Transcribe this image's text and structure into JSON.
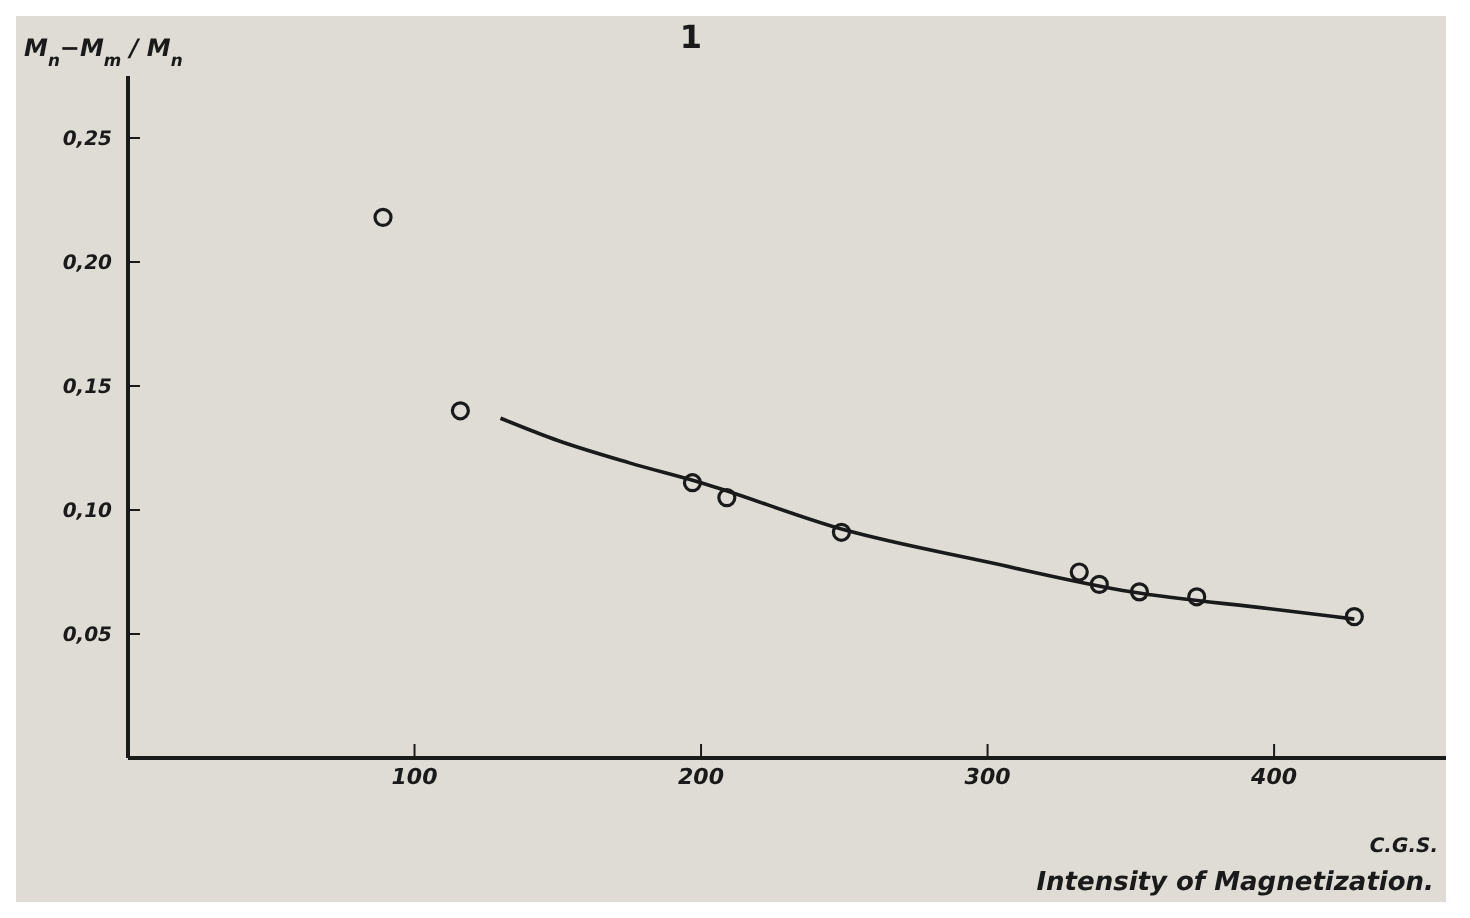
{
  "chart_data": {
    "type": "scatter",
    "title": "1",
    "xlabel": "Intensity of Magnetization.",
    "ylabel": "M$_{n}$−M$_{m}$ / M$_{n}$",
    "annotations": [
      "C.G.S."
    ],
    "xlim": [
      0,
      460
    ],
    "xticks": [
      100,
      200,
      300,
      400
    ],
    "ylim": [
      0,
      0.275
    ],
    "yticks": [
      {
        "value": 0.05,
        "label": "0,05"
      },
      {
        "value": 0.1,
        "label": "0,10"
      },
      {
        "value": 0.15,
        "label": "0,15"
      },
      {
        "value": 0.2,
        "label": "0,20"
      },
      {
        "value": 0.25,
        "label": "0,25"
      }
    ],
    "grid": false,
    "legend": false,
    "marker": "circle",
    "series": [
      {
        "color": "#1a1a1a",
        "x": [
          89,
          116,
          197,
          209,
          249,
          332,
          339,
          353,
          373,
          428
        ],
        "values": [
          0.218,
          0.14,
          0.111,
          0.105,
          0.091,
          0.075,
          0.07,
          0.067,
          0.065,
          0.057
        ]
      },
      {
        "type": "line",
        "color": "#1a1a1a",
        "line_style": "solid",
        "marker": "none",
        "x": [
          130,
          150,
          175,
          200,
          250,
          300,
          350,
          400,
          428
        ],
        "values": [
          0.137,
          0.128,
          0.119,
          0.111,
          0.092,
          0.079,
          0.067,
          0.06,
          0.056
        ]
      }
    ]
  }
}
